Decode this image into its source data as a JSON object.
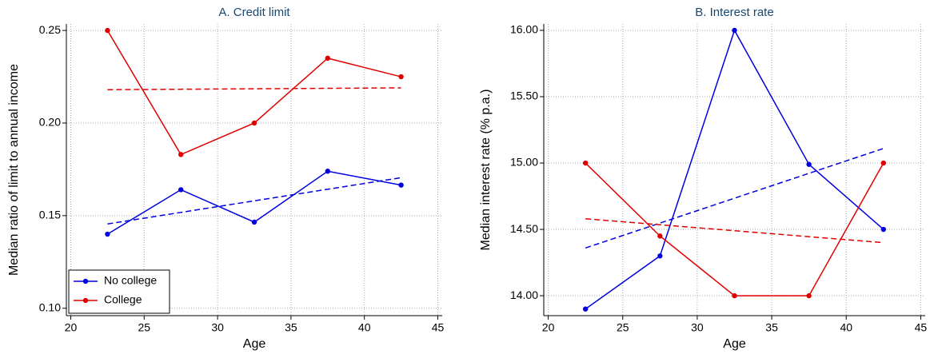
{
  "chart_data": [
    {
      "type": "line",
      "title": "A. Credit limit",
      "xlabel": "Age",
      "ylabel": "Median ratio of limit to annual income",
      "x": [
        22.5,
        27.5,
        32.5,
        37.5,
        42.5
      ],
      "series": [
        {
          "name": "No college",
          "color": "#0000e0",
          "values": [
            0.14,
            0.164,
            0.1465,
            0.174,
            0.1665
          ]
        },
        {
          "name": "College",
          "color": "#e00000",
          "values": [
            0.25,
            0.183,
            0.2,
            0.235,
            0.225
          ]
        }
      ],
      "trendlines": [
        {
          "color": "#0000e0",
          "x": [
            22.5,
            42.5
          ],
          "values": [
            0.1455,
            0.1705
          ]
        },
        {
          "color": "#e00000",
          "x": [
            22.5,
            42.5
          ],
          "values": [
            0.218,
            0.219
          ]
        }
      ],
      "xlim": [
        19.7,
        45.3
      ],
      "xticks": [
        20,
        25,
        30,
        35,
        40,
        45
      ],
      "ylim": [
        0.096,
        0.2535
      ],
      "yticks": [
        {
          "value": 0.1,
          "label": "0.10"
        },
        0.15,
        {
          "value": 0.2,
          "label": "0.20"
        },
        0.25
      ],
      "grid": true,
      "legend": "lower left"
    },
    {
      "type": "line",
      "title": "B. Interest rate",
      "xlabel": "Age",
      "ylabel": "Median interest rate (% p.a.)",
      "x": [
        22.5,
        27.5,
        32.5,
        37.5,
        42.5
      ],
      "series": [
        {
          "name": "No college",
          "color": "#0000e0",
          "values": [
            13.9,
            14.3,
            16.0,
            14.99,
            14.5
          ]
        },
        {
          "name": "College",
          "color": "#e00000",
          "values": [
            15.0,
            14.45,
            14.0,
            14.0,
            15.0
          ]
        }
      ],
      "trendlines": [
        {
          "color": "#0000e0",
          "x": [
            22.5,
            42.5
          ],
          "values": [
            14.36,
            15.11
          ]
        },
        {
          "color": "#e00000",
          "x": [
            22.5,
            42.5
          ],
          "values": [
            14.58,
            14.4
          ]
        }
      ],
      "xlim": [
        19.7,
        45.3
      ],
      "xticks": [
        20,
        25,
        30,
        35,
        40,
        45
      ],
      "ylim": [
        13.85,
        16.048
      ],
      "yticks": [
        {
          "value": 14.0,
          "label": "14.00"
        },
        {
          "value": 14.5,
          "label": "14.50"
        },
        {
          "value": 15.0,
          "label": "15.00"
        },
        {
          "value": 15.5,
          "label": "15.50"
        },
        {
          "value": 16.0,
          "label": "16.00"
        }
      ],
      "grid": true
    }
  ]
}
